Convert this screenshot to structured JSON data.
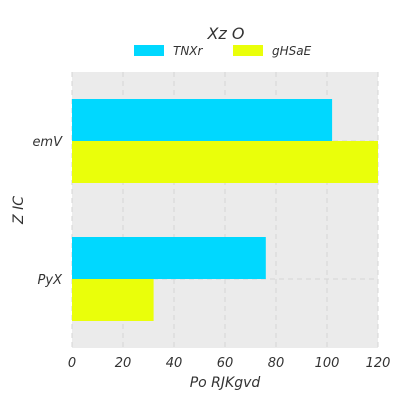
{
  "chart_data": {
    "type": "bar",
    "orientation": "horizontal",
    "title": "Xz  O",
    "xlabel": "Po RJKgvd",
    "ylabel": "Z  IC",
    "categories": [
      "emV",
      "PyX"
    ],
    "series": [
      {
        "name": "TNXr",
        "values": [
          102,
          76
        ],
        "color": "#00d8ff"
      },
      {
        "name": "gHSaE",
        "values": [
          120,
          32
        ],
        "color": "#eaff0a"
      }
    ],
    "xlim": [
      0,
      120
    ],
    "xticks": [
      0,
      20,
      40,
      60,
      80,
      100,
      120
    ],
    "grid": true,
    "legend_position": "top",
    "background_color": "#ebebeb",
    "grid_color": "#d6d6d6"
  }
}
